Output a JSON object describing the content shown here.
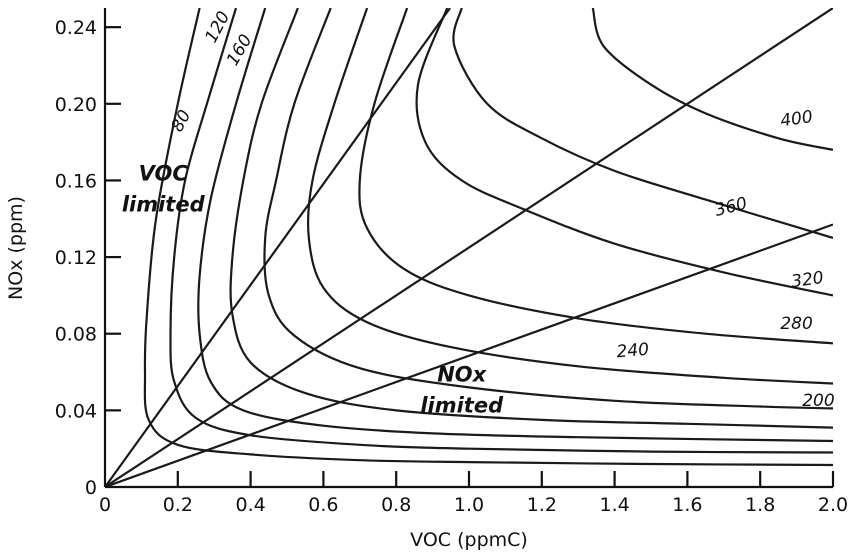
{
  "chart_data": {
    "type": "line",
    "title": "",
    "xlabel": "VOC (ppmC)",
    "ylabel": "NOx (ppm)",
    "xlim": [
      0,
      2.0
    ],
    "ylim": [
      0,
      0.25
    ],
    "x_ticks": [
      "0",
      "0.2",
      "0.4",
      "0.6",
      "0.8",
      "1.0",
      "1.2",
      "1.4",
      "1.6",
      "1.8",
      "2.0"
    ],
    "y_ticks": [
      "0",
      "0.04",
      "0.08",
      "0.12",
      "0.16",
      "0.20",
      "0.24"
    ],
    "grid": false,
    "legend": "none",
    "isopleths": [
      {
        "label": "80",
        "points": [
          [
            0.26,
            0.25
          ],
          [
            0.2,
            0.2
          ],
          [
            0.14,
            0.14
          ],
          [
            0.115,
            0.09
          ],
          [
            0.11,
            0.06
          ],
          [
            0.12,
            0.035
          ],
          [
            0.2,
            0.022
          ],
          [
            0.4,
            0.017
          ],
          [
            0.7,
            0.014
          ],
          [
            1.0,
            0.013
          ],
          [
            1.5,
            0.012
          ],
          [
            2.0,
            0.0115
          ]
        ]
      },
      {
        "label": "120",
        "points": [
          [
            0.36,
            0.25
          ],
          [
            0.28,
            0.2
          ],
          [
            0.22,
            0.16
          ],
          [
            0.19,
            0.12
          ],
          [
            0.18,
            0.08
          ],
          [
            0.19,
            0.055
          ],
          [
            0.25,
            0.036
          ],
          [
            0.4,
            0.027
          ],
          [
            0.7,
            0.022
          ],
          [
            1.0,
            0.02
          ],
          [
            1.5,
            0.0185
          ],
          [
            2.0,
            0.018
          ]
        ]
      },
      {
        "label": "160",
        "points": [
          [
            0.44,
            0.25
          ],
          [
            0.36,
            0.2
          ],
          [
            0.29,
            0.15
          ],
          [
            0.26,
            0.11
          ],
          [
            0.26,
            0.08
          ],
          [
            0.29,
            0.055
          ],
          [
            0.38,
            0.04
          ],
          [
            0.6,
            0.032
          ],
          [
            0.9,
            0.028
          ],
          [
            1.3,
            0.026
          ],
          [
            2.0,
            0.024
          ]
        ]
      },
      {
        "label": "",
        "points": [
          [
            0.53,
            0.25
          ],
          [
            0.43,
            0.2
          ],
          [
            0.38,
            0.16
          ],
          [
            0.35,
            0.12
          ],
          [
            0.35,
            0.09
          ],
          [
            0.4,
            0.065
          ],
          [
            0.55,
            0.049
          ],
          [
            0.8,
            0.04
          ],
          [
            1.2,
            0.035
          ],
          [
            1.6,
            0.033
          ],
          [
            2.0,
            0.031
          ]
        ]
      },
      {
        "label": "200",
        "points": [
          [
            0.62,
            0.25
          ],
          [
            0.52,
            0.2
          ],
          [
            0.47,
            0.16
          ],
          [
            0.44,
            0.13
          ],
          [
            0.45,
            0.1
          ],
          [
            0.52,
            0.079
          ],
          [
            0.7,
            0.062
          ],
          [
            1.0,
            0.052
          ],
          [
            1.4,
            0.045
          ],
          [
            1.8,
            0.042
          ],
          [
            2.0,
            0.041
          ]
        ]
      },
      {
        "label": "240",
        "points": [
          [
            0.72,
            0.25
          ],
          [
            0.63,
            0.2
          ],
          [
            0.57,
            0.16
          ],
          [
            0.56,
            0.13
          ],
          [
            0.6,
            0.104
          ],
          [
            0.72,
            0.086
          ],
          [
            0.95,
            0.073
          ],
          [
            1.3,
            0.063
          ],
          [
            1.7,
            0.057
          ],
          [
            2.0,
            0.054
          ]
        ]
      },
      {
        "label": "280",
        "points": [
          [
            0.83,
            0.25
          ],
          [
            0.74,
            0.2
          ],
          [
            0.7,
            0.16
          ],
          [
            0.72,
            0.135
          ],
          [
            0.82,
            0.114
          ],
          [
            1.0,
            0.1
          ],
          [
            1.3,
            0.088
          ],
          [
            1.65,
            0.08
          ],
          [
            2.0,
            0.075
          ]
        ]
      },
      {
        "label": "320",
        "points": [
          [
            0.94,
            0.25
          ],
          [
            0.86,
            0.21
          ],
          [
            0.88,
            0.18
          ],
          [
            0.98,
            0.16
          ],
          [
            1.15,
            0.145
          ],
          [
            1.4,
            0.127
          ],
          [
            1.7,
            0.112
          ],
          [
            2.0,
            0.1
          ]
        ]
      },
      {
        "label": "360",
        "points": [
          [
            0.98,
            0.25
          ],
          [
            0.96,
            0.23
          ],
          [
            1.05,
            0.2
          ],
          [
            1.2,
            0.182
          ],
          [
            1.4,
            0.165
          ],
          [
            1.65,
            0.15
          ],
          [
            2.0,
            0.13
          ]
        ]
      },
      {
        "label": "400",
        "points": [
          [
            1.34,
            0.25
          ],
          [
            1.37,
            0.23
          ],
          [
            1.5,
            0.21
          ],
          [
            1.65,
            0.195
          ],
          [
            1.85,
            0.182
          ],
          [
            2.0,
            0.176
          ]
        ]
      }
    ],
    "ratio_lines": [
      {
        "points": [
          [
            0,
            0
          ],
          [
            0.948,
            0.25
          ]
        ]
      },
      {
        "points": [
          [
            0,
            0
          ],
          [
            2.0,
            0.25
          ]
        ]
      },
      {
        "points": [
          [
            0,
            0
          ],
          [
            2.0,
            0.137
          ]
        ]
      }
    ],
    "annotations": [
      {
        "id": "contour-80",
        "text": "80",
        "x": 0.21,
        "y": 0.191,
        "rotate": -62
      },
      {
        "id": "contour-120",
        "text": "120",
        "x": 0.31,
        "y": 0.24,
        "rotate": -62
      },
      {
        "id": "contour-160",
        "text": "160",
        "x": 0.37,
        "y": 0.228,
        "rotate": -60
      },
      {
        "id": "contour-200",
        "text": "200",
        "x": 1.96,
        "y": 0.045,
        "rotate": 0
      },
      {
        "id": "contour-240",
        "text": "240",
        "x": 1.45,
        "y": 0.071,
        "rotate": -5
      },
      {
        "id": "contour-280",
        "text": "280",
        "x": 1.9,
        "y": 0.085,
        "rotate": 0
      },
      {
        "id": "contour-320",
        "text": "320",
        "x": 1.93,
        "y": 0.108,
        "rotate": -8
      },
      {
        "id": "contour-360",
        "text": "360",
        "x": 1.72,
        "y": 0.146,
        "rotate": -14
      },
      {
        "id": "contour-400",
        "text": "400",
        "x": 1.9,
        "y": 0.192,
        "rotate": -8
      }
    ],
    "regions": [
      {
        "id": "voc-limited",
        "lines": [
          "VOC",
          "limited"
        ],
        "x": 0.16,
        "y": 0.16
      },
      {
        "id": "nox-limited",
        "lines": [
          "NOx",
          "limited"
        ],
        "x": 0.98,
        "y": 0.055
      }
    ]
  }
}
